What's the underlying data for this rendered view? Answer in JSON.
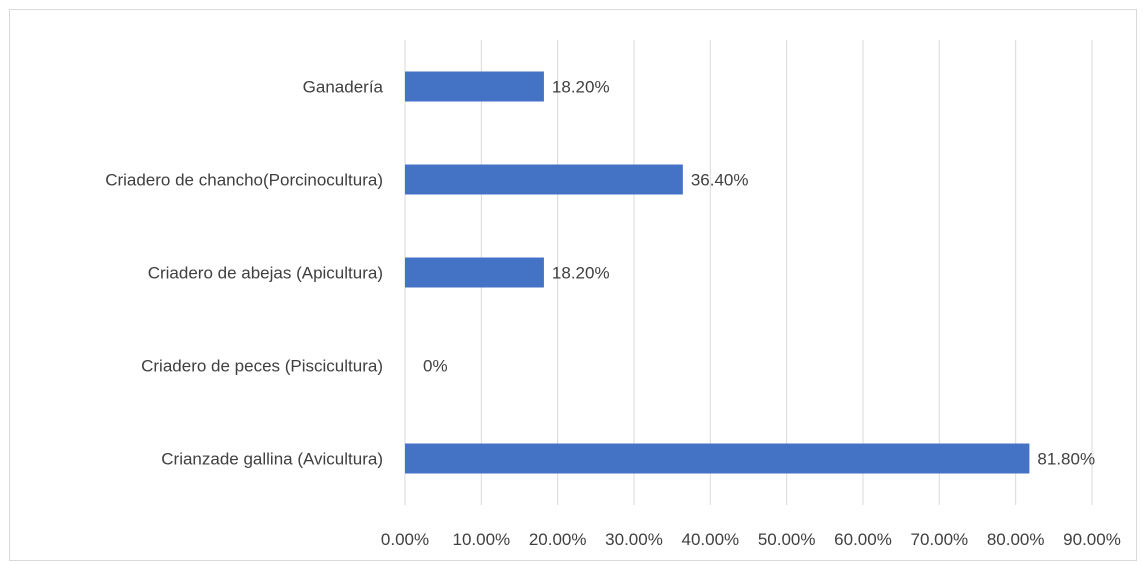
{
  "chart_data": {
    "type": "bar",
    "orientation": "horizontal",
    "title": "",
    "xlabel": "",
    "ylabel": "",
    "categories": [
      "Ganadería",
      "Criadero de chancho(Porcinocultura)",
      "Criadero de abejas (Apicultura)",
      "Criadero de peces (Piscicultura)",
      "Crianzade gallina (Avicultura)"
    ],
    "values": [
      18.2,
      36.4,
      18.2,
      0,
      81.8
    ],
    "data_labels": [
      "18.20%",
      "36.40%",
      "18.20%",
      "0%",
      "81.80%"
    ],
    "xlim": [
      0,
      90
    ],
    "x_ticks": [
      0,
      10,
      20,
      30,
      40,
      50,
      60,
      70,
      80,
      90
    ],
    "x_tick_labels": [
      "0.00%",
      "10.00%",
      "20.00%",
      "30.00%",
      "40.00%",
      "50.00%",
      "60.00%",
      "70.00%",
      "80.00%",
      "90.00%"
    ],
    "grid": "vertical",
    "legend": "none",
    "bar_color": "#4472C4",
    "grid_color": "#d9d9d9",
    "text_color": "#404040"
  }
}
